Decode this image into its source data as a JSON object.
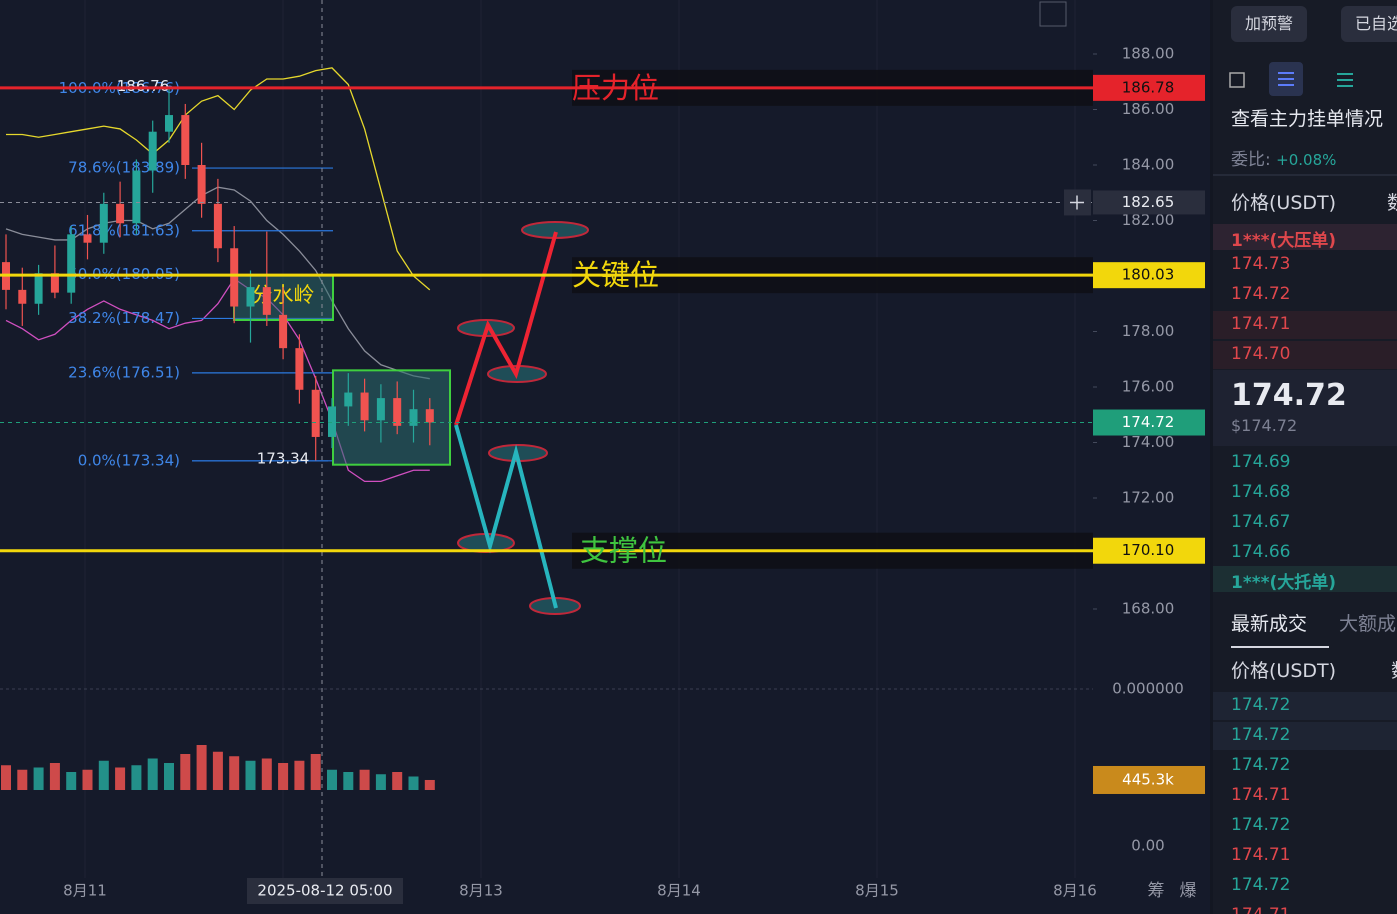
{
  "chart_data": {
    "type": "candlestick",
    "candles": [
      {
        "o": 180.5,
        "h": 181.5,
        "l": 178.8,
        "c": 179.5
      },
      {
        "o": 179.5,
        "h": 180.3,
        "l": 178.2,
        "c": 179.0
      },
      {
        "o": 179.0,
        "h": 180.4,
        "l": 178.6,
        "c": 180.1
      },
      {
        "o": 180.1,
        "h": 181.1,
        "l": 179.2,
        "c": 179.4
      },
      {
        "o": 179.4,
        "h": 181.8,
        "l": 179.0,
        "c": 181.5
      },
      {
        "o": 181.5,
        "h": 182.2,
        "l": 180.6,
        "c": 181.2
      },
      {
        "o": 181.2,
        "h": 183.0,
        "l": 180.8,
        "c": 182.6
      },
      {
        "o": 182.6,
        "h": 183.4,
        "l": 181.4,
        "c": 181.9
      },
      {
        "o": 181.9,
        "h": 184.2,
        "l": 181.5,
        "c": 183.8
      },
      {
        "o": 183.8,
        "h": 185.6,
        "l": 183.0,
        "c": 185.2
      },
      {
        "o": 185.2,
        "h": 186.76,
        "l": 184.8,
        "c": 185.8
      },
      {
        "o": 185.8,
        "h": 186.2,
        "l": 183.5,
        "c": 184.0
      },
      {
        "o": 184.0,
        "h": 184.8,
        "l": 182.1,
        "c": 182.6
      },
      {
        "o": 182.6,
        "h": 183.5,
        "l": 180.5,
        "c": 181.0
      },
      {
        "o": 181.0,
        "h": 181.8,
        "l": 178.3,
        "c": 178.9
      },
      {
        "o": 178.9,
        "h": 180.2,
        "l": 177.6,
        "c": 179.6
      },
      {
        "o": 179.6,
        "h": 181.6,
        "l": 178.2,
        "c": 178.6
      },
      {
        "o": 178.6,
        "h": 179.6,
        "l": 177.0,
        "c": 177.4
      },
      {
        "o": 177.4,
        "h": 177.9,
        "l": 175.4,
        "c": 175.9
      },
      {
        "o": 175.9,
        "h": 176.4,
        "l": 173.34,
        "c": 174.2
      },
      {
        "o": 174.2,
        "h": 175.6,
        "l": 173.8,
        "c": 175.3
      },
      {
        "o": 175.3,
        "h": 176.5,
        "l": 174.6,
        "c": 175.8
      },
      {
        "o": 175.8,
        "h": 176.3,
        "l": 174.4,
        "c": 174.8
      },
      {
        "o": 174.8,
        "h": 176.1,
        "l": 174.0,
        "c": 175.6
      },
      {
        "o": 175.6,
        "h": 176.2,
        "l": 174.3,
        "c": 174.6
      },
      {
        "o": 174.6,
        "h": 175.9,
        "l": 174.0,
        "c": 175.2
      },
      {
        "o": 175.2,
        "h": 175.6,
        "l": 173.9,
        "c": 174.72
      }
    ],
    "up_color": "#26a69a",
    "down_color": "#ef5350",
    "bands": [
      {
        "name": "upper",
        "color": "#e6d82c",
        "values": [
          185.1,
          185.1,
          185.0,
          185.1,
          185.2,
          185.3,
          185.4,
          185.3,
          184.9,
          184.4,
          184.9,
          185.8,
          186.3,
          186.5,
          186.0,
          186.7,
          187.1,
          187.1,
          187.2,
          187.4,
          187.5,
          186.9,
          185.3,
          183.1,
          180.9,
          180.0,
          179.5
        ]
      },
      {
        "name": "middle",
        "color": "#8a8d99",
        "values": [
          181.7,
          181.5,
          181.4,
          181.3,
          181.3,
          181.7,
          181.9,
          182.0,
          182.0,
          181.7,
          181.9,
          182.4,
          182.9,
          183.2,
          183.1,
          182.7,
          182.0,
          181.5,
          180.9,
          180.2,
          179.1,
          178.1,
          177.3,
          176.8,
          176.6,
          176.4,
          176.3
        ]
      },
      {
        "name": "lower",
        "color": "#d04fc0",
        "values": [
          178.4,
          178.1,
          177.7,
          177.9,
          178.4,
          178.8,
          179.1,
          178.8,
          178.6,
          178.4,
          178.1,
          178.3,
          178.4,
          179.0,
          179.9,
          179.5,
          179.2,
          178.6,
          177.7,
          176.3,
          174.8,
          173.0,
          172.6,
          172.6,
          172.8,
          173.0,
          173.0
        ]
      }
    ],
    "ylim": [
      168,
      188
    ],
    "yticks": [
      {
        "value": 188,
        "label": "188.00"
      },
      {
        "value": 186,
        "label": "186.00"
      },
      {
        "value": 184,
        "label": "184.00"
      },
      {
        "value": 182,
        "label": "182.00"
      },
      {
        "value": 180,
        "label": "180.00"
      },
      {
        "value": 178,
        "label": "178.00"
      },
      {
        "value": 176,
        "label": "176.00"
      },
      {
        "value": 174,
        "label": "174.00"
      },
      {
        "value": 172,
        "label": "172.00"
      },
      {
        "value": 170,
        "label": "170.00"
      },
      {
        "value": 168,
        "label": "168.00"
      }
    ],
    "levels": [
      {
        "name": "压力位",
        "value": 186.78,
        "label": "186.78",
        "color": "#e5232b",
        "text_color": "#e5232b",
        "box_text": "#111111"
      },
      {
        "name": "关键位",
        "value": 180.03,
        "label": "180.03",
        "color": "#f2d70c",
        "text_color": "#f2d70c",
        "box_text": "#111111"
      },
      {
        "name": "支撑位",
        "value": 170.1,
        "label": "170.10",
        "color": "#f2d70c",
        "text_color": "#3fc43f",
        "box_text": "#111111"
      }
    ],
    "current_price": {
      "value": 174.72,
      "label": "174.72",
      "color": "#1f9e7a"
    },
    "crosshair_price": {
      "value": 182.65,
      "label": "182.65"
    },
    "fib": [
      {
        "value": 186.76,
        "label": "100.0%(186.76)"
      },
      {
        "value": 183.89,
        "label": "78.6%(183.89)"
      },
      {
        "value": 181.63,
        "label": "61.8%(181.63)"
      },
      {
        "value": 180.05,
        "label": "50.0%(180.05)"
      },
      {
        "value": 178.47,
        "label": "38.2%(178.47)"
      },
      {
        "value": 176.51,
        "label": "23.6%(176.51)"
      },
      {
        "value": 173.34,
        "label": "0.0%(173.34)"
      }
    ],
    "high_label": {
      "value": 186.76,
      "label": "186.76"
    },
    "low_label": {
      "value": 173.34,
      "label": "173.34"
    },
    "box_label": "分水岭",
    "volume": [
      1100000,
      900000,
      1000000,
      1200000,
      800000,
      900000,
      1300000,
      1000000,
      1100000,
      1400000,
      1200000,
      1600000,
      2000000,
      1700000,
      1500000,
      1300000,
      1400000,
      1200000,
      1300000,
      1600000,
      900000,
      800000,
      900000,
      700000,
      800000,
      600000,
      445300
    ],
    "volume_ylim": [
      0,
      2000000
    ],
    "volume_marker": {
      "value": 445300,
      "label": "445.3k"
    },
    "osc_ticks": [
      {
        "value": 0,
        "label": "0.000000"
      }
    ],
    "macd_ticks": [
      {
        "value": 0,
        "label": "0.00"
      }
    ],
    "x_ticks": [
      "8月11",
      null,
      "8月13",
      "8月14",
      "8月15",
      "8月16"
    ],
    "crosshair_time": "2025-08-12 05:00",
    "footer_icons": [
      "筹",
      "爆"
    ]
  },
  "panel": {
    "buttons": [
      "加预警",
      "已自选"
    ],
    "depth_link": "查看主力挂单情况",
    "ratio_label": "委比:",
    "ratio_value": "+0.08%",
    "columns": [
      "价格(USDT)",
      "数量"
    ],
    "big_ask": "1***(大压单)",
    "asks": [
      "174.73",
      "174.72",
      "174.71",
      "174.70"
    ],
    "last_price": "174.72",
    "last_usd": "$174.72",
    "bids": [
      "174.69",
      "174.68",
      "174.67",
      "174.66"
    ],
    "big_bid": "1***(大托单)",
    "tabs": [
      "最新成交",
      "大额成交"
    ],
    "trade_columns": [
      "价格(USDT)",
      "数量"
    ],
    "trades": [
      {
        "price": "174.72",
        "side": "buy"
      },
      {
        "price": "174.72",
        "side": "buy"
      },
      {
        "price": "174.72",
        "side": "buy"
      },
      {
        "price": "174.71",
        "side": "sell"
      },
      {
        "price": "174.72",
        "side": "buy"
      },
      {
        "price": "174.71",
        "side": "sell"
      },
      {
        "price": "174.72",
        "side": "buy"
      },
      {
        "price": "174.71",
        "side": "sell"
      }
    ]
  }
}
